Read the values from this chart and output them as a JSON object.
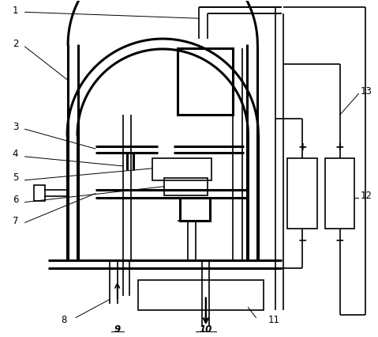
{
  "background_color": "#ffffff",
  "line_color": "#000000",
  "lw_thin": 1.2,
  "lw_thick": 2.2,
  "label_fs": 8.5
}
